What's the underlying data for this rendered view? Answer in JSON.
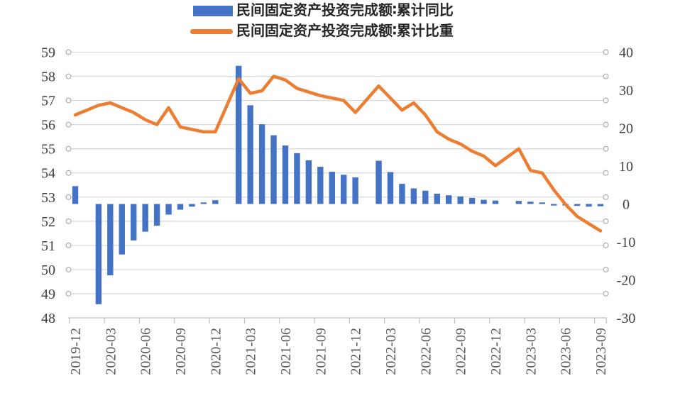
{
  "legend": {
    "items": [
      {
        "label": "民间固定资产投资完成额∶累计同比",
        "marker": "bar-swatch",
        "color": "#4472C4"
      },
      {
        "label": "民间固定资产投资完成额∶累计比重",
        "marker": "line-swatch",
        "color": "#ED7D31"
      }
    ]
  },
  "colors": {
    "bar_series": "#4472C4",
    "line_series": "#ED7D31",
    "gridline": "#D9D9D9",
    "axis_line": "#BFBFBF",
    "tick_circle_stroke": "#A6A6A6",
    "y_label": "#404040",
    "x_label": "#595959"
  },
  "chart_data": {
    "type": "bar",
    "combo": true,
    "title": "",
    "grid": true,
    "legend_position": "top",
    "categories": [
      "2019-12",
      "2020-01",
      "2020-02",
      "2020-03",
      "2020-04",
      "2020-05",
      "2020-06",
      "2020-07",
      "2020-08",
      "2020-09",
      "2020-10",
      "2020-11",
      "2020-12",
      "2021-01",
      "2021-02",
      "2021-03",
      "2021-04",
      "2021-05",
      "2021-06",
      "2021-07",
      "2021-08",
      "2021-09",
      "2021-10",
      "2021-11",
      "2021-12",
      "2022-01",
      "2022-02",
      "2022-03",
      "2022-04",
      "2022-05",
      "2022-06",
      "2022-07",
      "2022-08",
      "2022-09",
      "2022-10",
      "2022-11",
      "2022-12",
      "2023-01",
      "2023-02",
      "2023-03",
      "2023-04",
      "2023-05",
      "2023-06",
      "2023-07",
      "2023-08",
      "2023-09"
    ],
    "series": [
      {
        "name": "民间固定资产投资完成额:累计同比",
        "type": "bar",
        "axis": "right",
        "color": "#4472C4",
        "values": [
          4.7,
          null,
          -26.4,
          -18.8,
          -13.3,
          -9.6,
          -7.3,
          -5.7,
          -2.8,
          -1.5,
          -0.7,
          0.2,
          1.0,
          null,
          36.4,
          26.0,
          21.0,
          18.1,
          15.4,
          13.4,
          11.5,
          9.8,
          8.5,
          7.7,
          7.0,
          null,
          11.4,
          8.4,
          5.3,
          4.1,
          3.5,
          2.7,
          2.3,
          2.0,
          1.6,
          1.1,
          0.9,
          null,
          0.8,
          0.6,
          0.4,
          -0.1,
          -0.2,
          -0.5,
          -0.7,
          -0.6
        ]
      },
      {
        "name": "民间固定资产投资完成额:累计比重",
        "type": "line",
        "axis": "left",
        "color": "#ED7D31",
        "values": [
          56.4,
          null,
          56.8,
          56.9,
          56.7,
          56.5,
          56.2,
          56.0,
          56.7,
          55.9,
          55.8,
          55.7,
          55.7,
          null,
          57.9,
          57.3,
          57.4,
          58.0,
          57.85,
          57.5,
          57.35,
          57.2,
          57.1,
          57.0,
          56.5,
          null,
          57.6,
          57.1,
          56.6,
          56.9,
          56.4,
          55.7,
          55.4,
          55.2,
          54.9,
          54.7,
          54.3,
          null,
          55.0,
          54.1,
          54.0,
          53.3,
          52.7,
          52.2,
          51.9,
          51.6
        ]
      }
    ],
    "left_axis": {
      "min": 48,
      "max": 59,
      "step": 1,
      "ticks": [
        59,
        58,
        57,
        56,
        55,
        54,
        53,
        52,
        51,
        50,
        49,
        48
      ]
    },
    "right_axis": {
      "min": -30,
      "max": 40,
      "step": 10,
      "ticks": [
        40,
        30,
        20,
        10,
        0,
        -10,
        -20,
        -30
      ]
    },
    "x_tick_labels": [
      "2019-12",
      "2020-03",
      "2020-06",
      "2020-09",
      "2020-12",
      "2021-03",
      "2021-06",
      "2021-09",
      "2021-12",
      "2022-03",
      "2022-06",
      "2022-09",
      "2022-12",
      "2023-03",
      "2023-06",
      "2023-09"
    ]
  }
}
